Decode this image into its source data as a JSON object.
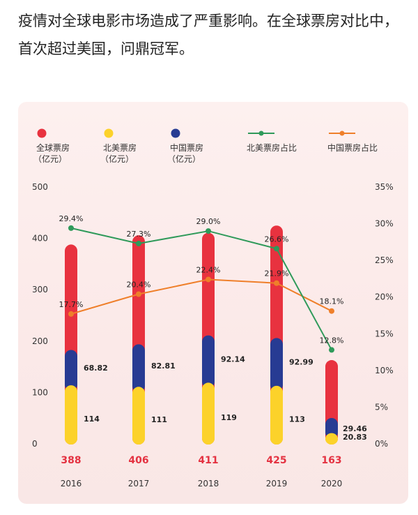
{
  "article": {
    "text": "疫情对全球电影市场造成了严重影响。在全球票房对比中，首次超过美国，问鼎冠军。"
  },
  "colors": {
    "global": "#e8323f",
    "north_america": "#fcd22a",
    "china": "#273b93",
    "na_share_line": "#2f9a5a",
    "cn_share_line": "#ef7f2a",
    "total_text": "#e43241"
  },
  "legend": [
    {
      "key": "global",
      "line1": "全球票房",
      "line2": "（亿元）",
      "kind": "dot"
    },
    {
      "key": "north_america",
      "line1": "北美票房",
      "line2": "（亿元）",
      "kind": "dot"
    },
    {
      "key": "china",
      "line1": "中国票房",
      "line2": "（亿元）",
      "kind": "dot"
    },
    {
      "key": "na_share_line",
      "line1": "北美票房占比",
      "line2": "",
      "kind": "line"
    },
    {
      "key": "cn_share_line",
      "line1": "中国票房占比",
      "line2": "",
      "kind": "line"
    }
  ],
  "chart_data": {
    "type": "bar",
    "title": "",
    "categories": [
      "2016",
      "2017",
      "2018",
      "2019",
      "2020"
    ],
    "left_axis": {
      "min": 0,
      "max": 500,
      "ticks": [
        "0",
        "100",
        "200",
        "300",
        "400",
        "500"
      ]
    },
    "right_axis": {
      "min": 0,
      "max": 35,
      "ticks": [
        "0%",
        "5%",
        "10%",
        "15%",
        "20%",
        "25%",
        "30%",
        "35%"
      ]
    },
    "series": [
      {
        "name": "全球票房（亿元）",
        "key": "global",
        "values": [
          388,
          406,
          411,
          425,
          163
        ],
        "labels": [
          "388",
          "406",
          "411",
          "425",
          "163"
        ]
      },
      {
        "name": "北美票房（亿元）",
        "key": "north_america",
        "values": [
          114,
          111,
          119,
          113,
          20.83
        ],
        "labels": [
          "114",
          "111",
          "119",
          "113",
          "20.83"
        ]
      },
      {
        "name": "中国票房（亿元）",
        "key": "china",
        "values": [
          68.82,
          82.81,
          92.14,
          92.99,
          29.46
        ],
        "labels": [
          "68.82",
          "82.81",
          "92.14",
          "92.99",
          "29.46"
        ]
      },
      {
        "name": "北美票房占比",
        "key": "na_share_line",
        "values": [
          29.4,
          27.3,
          29.0,
          26.6,
          12.8
        ],
        "labels": [
          "29.4%",
          "27.3%",
          "29.0%",
          "26.6%",
          "12.8%"
        ]
      },
      {
        "name": "中国票房占比",
        "key": "cn_share_line",
        "values": [
          17.7,
          20.4,
          22.4,
          21.9,
          18.1
        ],
        "labels": [
          "17.7%",
          "20.4%",
          "22.4%",
          "21.9%",
          "18.1%"
        ]
      }
    ],
    "grid": false,
    "legend_position": "top"
  }
}
